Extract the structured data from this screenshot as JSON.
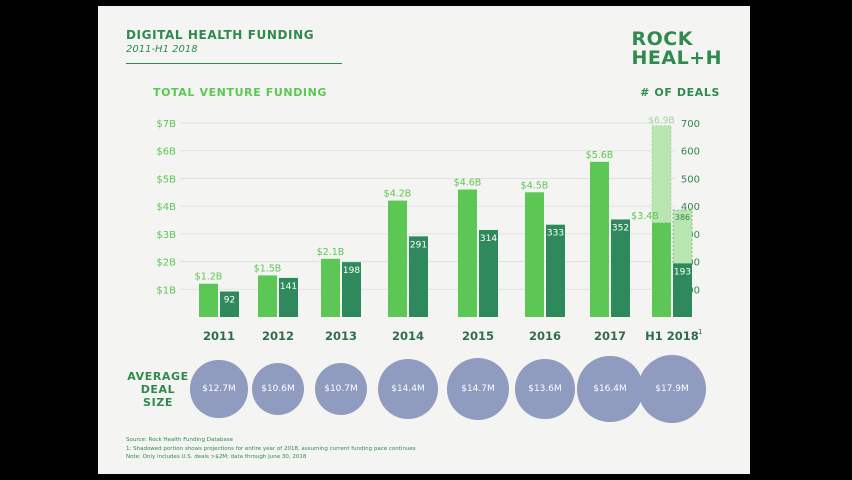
{
  "header": {
    "title": "DIGITAL HEALTH FUNDING",
    "subtitle": "2011-H1 2018",
    "logo_line1": "ROCK",
    "logo_line2": "HEAL+H"
  },
  "chart_data": {
    "type": "bar",
    "left_axis_title": "TOTAL VENTURE FUNDING",
    "right_axis_title": "# OF DEALS",
    "categories": [
      "2011",
      "2012",
      "2013",
      "2014",
      "2015",
      "2016",
      "2017",
      "H1 2018"
    ],
    "category_superscript": [
      "",
      "",
      "",
      "",
      "",
      "",
      "",
      "1"
    ],
    "funding_axis": {
      "min": 0,
      "max": 7,
      "ticks": [
        1,
        2,
        3,
        4,
        5,
        6,
        7
      ],
      "tick_labels": [
        "$1B",
        "$2B",
        "$3B",
        "$4B",
        "$5B",
        "$6B",
        "$7B"
      ]
    },
    "deals_axis": {
      "min": 0,
      "max": 700,
      "ticks": [
        100,
        200,
        300,
        400,
        500,
        600,
        700
      ],
      "tick_labels": [
        "100",
        "200",
        "300",
        "400",
        "500",
        "600",
        "700"
      ]
    },
    "series": [
      {
        "name": "TOTAL VENTURE FUNDING",
        "values": [
          1.2,
          1.5,
          2.1,
          4.2,
          4.6,
          4.5,
          5.6,
          3.4
        ],
        "labels": [
          "$1.2B",
          "$1.5B",
          "$2.1B",
          "$4.2B",
          "$4.6B",
          "$4.5B",
          "$5.6B",
          "$3.4B"
        ],
        "color": "#5cc754"
      },
      {
        "name": "# OF DEALS",
        "values": [
          92,
          141,
          198,
          291,
          314,
          333,
          352,
          193
        ],
        "labels": [
          "92",
          "141",
          "198",
          "291",
          "314",
          "333",
          "352",
          "193"
        ],
        "color": "#2e8a5d"
      }
    ],
    "projection": {
      "funding_value": 6.9,
      "funding_label": "$6.9B",
      "deals_value": 386,
      "deals_label": "386",
      "color": "#b8e5b0"
    },
    "average_deal_size": {
      "label_lines": [
        "AVERAGE",
        "DEAL",
        "SIZE"
      ],
      "values": [
        12.7,
        10.6,
        10.7,
        14.4,
        14.7,
        13.6,
        16.4,
        17.9
      ],
      "labels": [
        "$12.7M",
        "$10.6M",
        "$10.7M",
        "$14.4M",
        "$14.7M",
        "$13.6M",
        "$16.4M",
        "$17.9M"
      ],
      "color": "#8f9bbf"
    }
  },
  "footnotes": [
    "Source: Rock Health Funding Database",
    "1: Shadowed portion shows projections for entire year of 2018, assuming current funding pace continues",
    "Note: Only includes U.S. deals >$2M; data through June 30, 2018"
  ]
}
